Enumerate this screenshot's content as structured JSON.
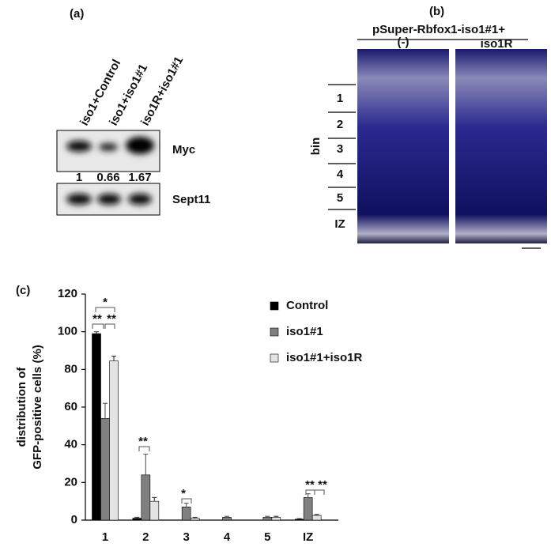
{
  "panel_a": {
    "label": "(a)",
    "lanes": [
      "iso1+Control",
      "iso1+iso1#1",
      "iso1R+iso1#1"
    ],
    "blots": [
      "Myc",
      "Sept11"
    ],
    "quantification": [
      1,
      0.66,
      1.67
    ]
  },
  "panel_b": {
    "label": "(b)",
    "construct": "pSuper-Rbfox1-iso1#1+",
    "conditions": [
      "(-)",
      "iso1R"
    ],
    "bin_title": "bin",
    "bins": [
      "1",
      "2",
      "3",
      "4",
      "5",
      "IZ"
    ]
  },
  "chart_data": {
    "type": "bar",
    "label": "(c)",
    "ylabel": [
      "distribution of",
      "GFP-positive cells (%)"
    ],
    "categories": [
      "1",
      "2",
      "3",
      "4",
      "5",
      "IZ"
    ],
    "series": [
      {
        "name": "Control",
        "color": "#000000",
        "values": [
          99,
          1,
          0,
          0,
          0,
          0.5
        ],
        "errors": [
          1,
          0.5,
          0,
          0,
          0,
          0.3
        ]
      },
      {
        "name": "iso1#1",
        "color": "#808080",
        "values": [
          54,
          24,
          7,
          1.5,
          1.5,
          12
        ],
        "errors": [
          8,
          11,
          2,
          0.5,
          0.5,
          2
        ]
      },
      {
        "name": "iso1#1+iso1R",
        "color": "#e3e3e3",
        "values": [
          84.5,
          10,
          1,
          0,
          1.5,
          2.5
        ],
        "errors": [
          2.5,
          2,
          0.5,
          0,
          0.5,
          0.5
        ]
      }
    ],
    "ylim": [
      0,
      120
    ],
    "yticks": [
      0,
      20,
      40,
      60,
      80,
      100,
      120
    ],
    "annotations": [
      "*",
      "**",
      "**",
      "**",
      "*",
      "**",
      "**"
    ]
  }
}
